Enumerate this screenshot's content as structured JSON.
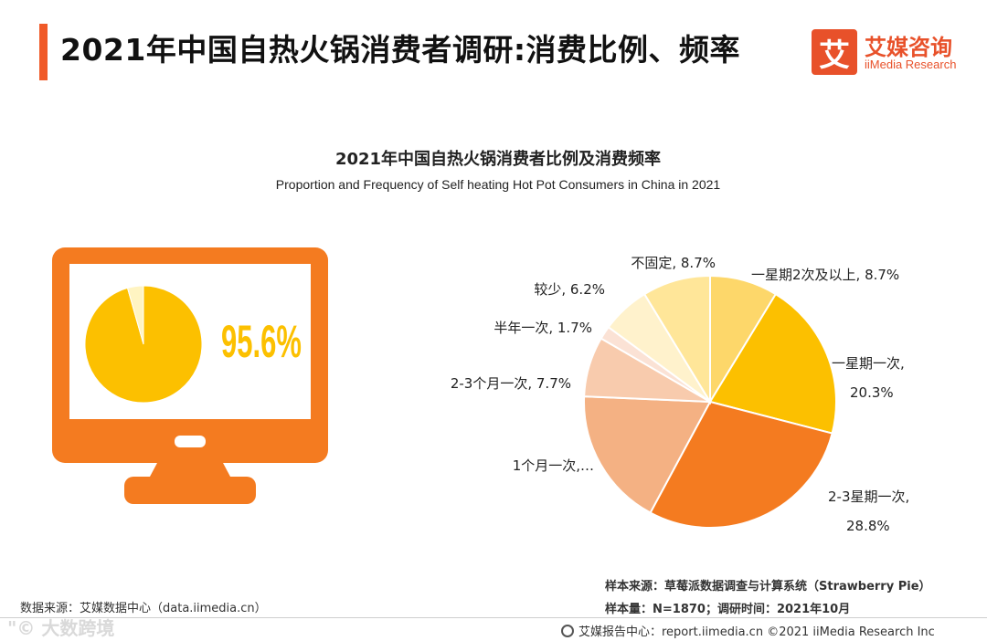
{
  "header": {
    "title": "2021年中国自热火锅消费者调研:消费比例、频率",
    "logo_mark": "艾",
    "logo_cn": "艾媒咨询",
    "logo_en": "iiMedia Research"
  },
  "chart": {
    "title": "2021年中国自热火锅消费者比例及消费频率",
    "subtitle": "Proportion and Frequency of Self heating Hot Pot Consumers in China in 2021"
  },
  "colors": {
    "accent": "#f05a28",
    "monitor": "#f47b20",
    "yellow": "#fcc000"
  },
  "chart_data": [
    {
      "type": "pie",
      "values": [
        95.6,
        4.4
      ],
      "colors": [
        "#fcc000",
        "#fff4c2"
      ],
      "big_label": "95.6%"
    },
    {
      "type": "pie",
      "slices": [
        {
          "label": "一星期2次及以上, 8.7%",
          "value": 8.7,
          "color": "#fdd76a"
        },
        {
          "label": "一星期一次, 20.3%",
          "value": 20.3,
          "color": "#fcc000"
        },
        {
          "label": "2-3星期一次, 28.8%",
          "value": 28.8,
          "color": "#f47b20"
        },
        {
          "label": "1个月一次,…",
          "value": 17.8,
          "color": "#f4b183"
        },
        {
          "label": "2-3个月一次, 7.7%",
          "value": 7.7,
          "color": "#f8cbad"
        },
        {
          "label": "半年一次, 1.7%",
          "value": 1.7,
          "color": "#fbe2d5"
        },
        {
          "label": "较少, 6.2%",
          "value": 6.2,
          "color": "#fff2cc"
        },
        {
          "label": "不固定, 8.7%",
          "value": 8.7,
          "color": "#ffe699"
        }
      ]
    }
  ],
  "footer": {
    "source": "数据来源：艾媒数据中心（data.iimedia.cn）",
    "sample_source": "样本来源：草莓派数据调查与计算系统（Strawberry Pie）",
    "sample_size": "样本量：N=1870；调研时间：2021年10月",
    "report_center": "艾媒报告中心：report.iimedia.cn  ©2021  iiMedia Research  Inc",
    "watermark": "\"© 大数跨境"
  }
}
